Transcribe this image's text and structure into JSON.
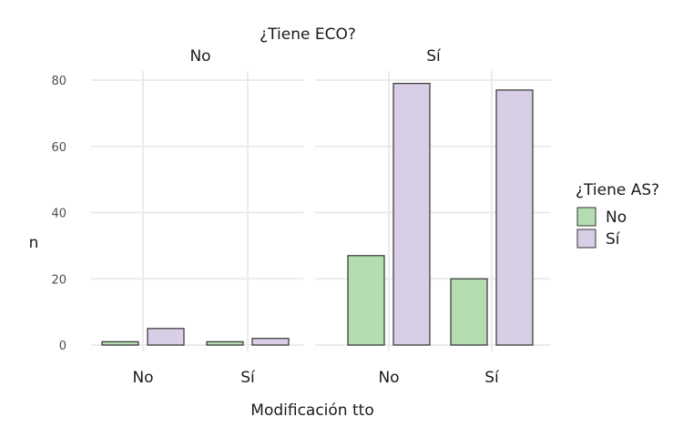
{
  "chart_data": {
    "type": "bar",
    "title": "¿Tiene ECO?",
    "facets": [
      "No",
      "Sí"
    ],
    "categories": [
      "No",
      "Sí"
    ],
    "xlabel": "Modificación tto",
    "ylabel": "n",
    "ylim": [
      0,
      80
    ],
    "yticks": [
      0,
      20,
      40,
      60,
      80
    ],
    "grid": true,
    "legend": {
      "title": "¿Tiene AS?",
      "position": "right",
      "entries": [
        "No",
        "Sí"
      ]
    },
    "series": [
      {
        "name": "No",
        "color": "#b4deb2",
        "values": {
          "No": [
            1,
            1
          ],
          "Sí": [
            27,
            20
          ]
        }
      },
      {
        "name": "Sí",
        "color": "#d8cfe7",
        "values": {
          "No": [
            5,
            2
          ],
          "Sí": [
            79,
            77
          ]
        }
      }
    ]
  }
}
